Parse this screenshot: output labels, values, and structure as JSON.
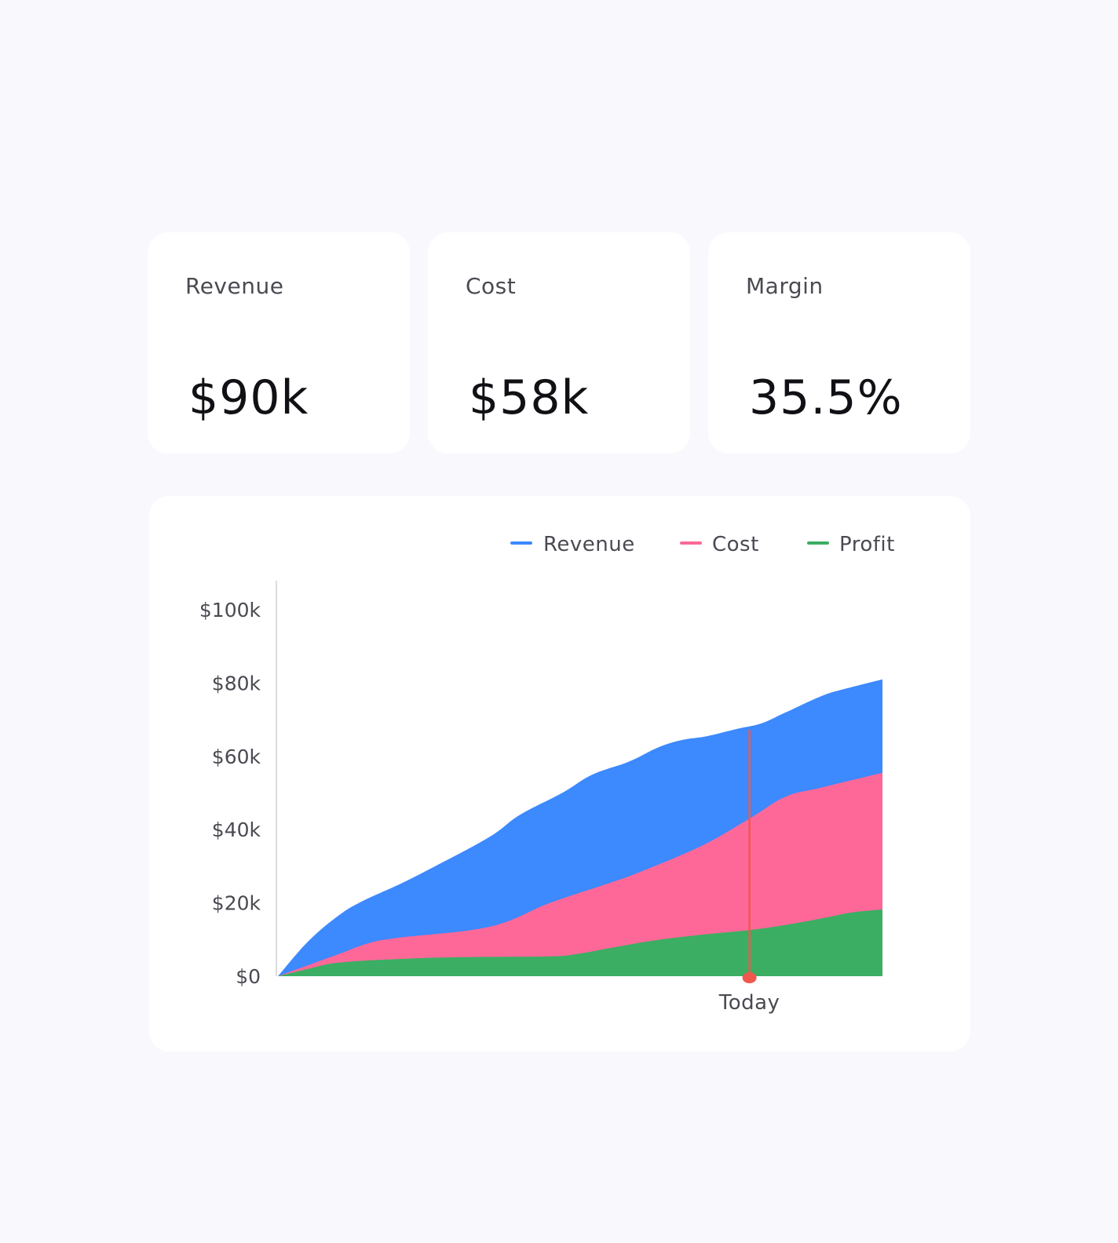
{
  "kpis": [
    {
      "label": "Revenue",
      "value": "$90k"
    },
    {
      "label": "Cost",
      "value": "$58k"
    },
    {
      "label": "Margin",
      "value": "35.5%"
    }
  ],
  "colors": {
    "revenue": "#3d89fe",
    "cost": "#fe6898",
    "profit": "#3bae63",
    "today_marker": "#f0584e",
    "axis": "#dcdce0"
  },
  "chart_data": {
    "type": "area",
    "title": "",
    "xlabel": "",
    "ylabel": "",
    "ylim": [
      0,
      108
    ],
    "y_ticks": [
      {
        "value": 0,
        "label": "$0"
      },
      {
        "value": 20,
        "label": "$20k"
      },
      {
        "value": 40,
        "label": "$40k"
      },
      {
        "value": 60,
        "label": "$60k"
      },
      {
        "value": 80,
        "label": "$80k"
      },
      {
        "value": 100,
        "label": "$100k"
      }
    ],
    "legend": {
      "placement": "top-right"
    },
    "marker": {
      "label": "Today",
      "x": 0.78
    },
    "series": [
      {
        "name": "Revenue",
        "x": [
          0,
          0.05,
          0.1,
          0.14,
          0.2,
          0.26,
          0.35,
          0.4,
          0.47,
          0.52,
          0.58,
          0.63,
          0.67,
          0.71,
          0.76,
          0.8,
          0.84,
          0.9,
          0.94,
          1.0
        ],
        "values": [
          0,
          9.5,
          16.5,
          20.5,
          25,
          30,
          38,
          44,
          50,
          55,
          58.5,
          62.5,
          64.5,
          65.5,
          67.5,
          69,
          72,
          76.5,
          78.5,
          81
        ]
      },
      {
        "name": "Cost",
        "x": [
          0,
          0.05,
          0.1,
          0.15,
          0.2,
          0.35,
          0.45,
          0.55,
          0.6,
          0.7,
          0.78,
          0.84,
          0.9,
          1.0
        ],
        "values": [
          0,
          3,
          6,
          9,
          10.5,
          13.5,
          20,
          25.5,
          28.5,
          35.5,
          43,
          49,
          51.5,
          55.5
        ]
      },
      {
        "name": "Profit",
        "x": [
          0,
          0.05,
          0.1,
          0.2,
          0.3,
          0.45,
          0.5,
          0.55,
          0.62,
          0.7,
          0.78,
          0.84,
          0.9,
          0.95,
          1.0
        ],
        "values": [
          0,
          2,
          3.7,
          4.7,
          5.2,
          5.4,
          6.2,
          7.7,
          9.7,
          11.3,
          12.6,
          14,
          15.8,
          17.4,
          18.2
        ]
      }
    ]
  }
}
